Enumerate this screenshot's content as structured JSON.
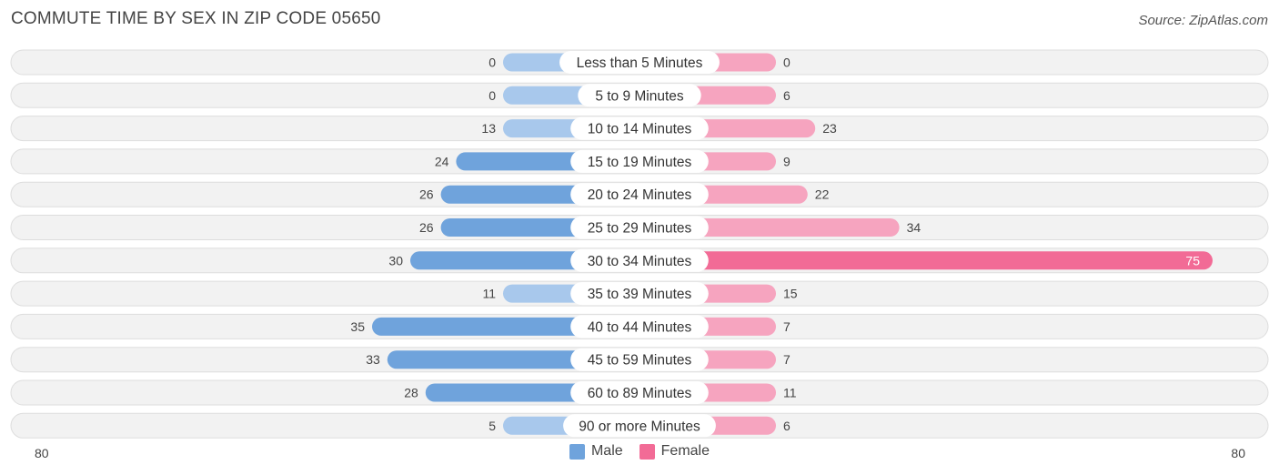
{
  "title": "COMMUTE TIME BY SEX IN ZIP CODE 05650",
  "source": "Source: ZipAtlas.com",
  "colors": {
    "male": "#6fa3dc",
    "male_light": "#a8c8ec",
    "female": "#f26b96",
    "female_light": "#f6a4bf",
    "row_bg": "#f2f2f2",
    "row_border": "#dddddd"
  },
  "legend": {
    "male": "Male",
    "female": "Female"
  },
  "chart_data": {
    "type": "bar",
    "orientation": "horizontal-diverging",
    "categories": [
      "Less than 5 Minutes",
      "5 to 9 Minutes",
      "10 to 14 Minutes",
      "15 to 19 Minutes",
      "20 to 24 Minutes",
      "25 to 29 Minutes",
      "30 to 34 Minutes",
      "35 to 39 Minutes",
      "40 to 44 Minutes",
      "45 to 59 Minutes",
      "60 to 89 Minutes",
      "90 or more Minutes"
    ],
    "series": [
      {
        "name": "Male",
        "values": [
          0,
          0,
          13,
          24,
          26,
          26,
          30,
          11,
          35,
          33,
          28,
          5
        ]
      },
      {
        "name": "Female",
        "values": [
          0,
          6,
          23,
          9,
          22,
          34,
          75,
          15,
          7,
          7,
          11,
          6
        ]
      }
    ],
    "xlim": [
      -80,
      80
    ],
    "axis_labels": {
      "left": "80",
      "right": "80"
    },
    "legend_position": "bottom-center"
  }
}
